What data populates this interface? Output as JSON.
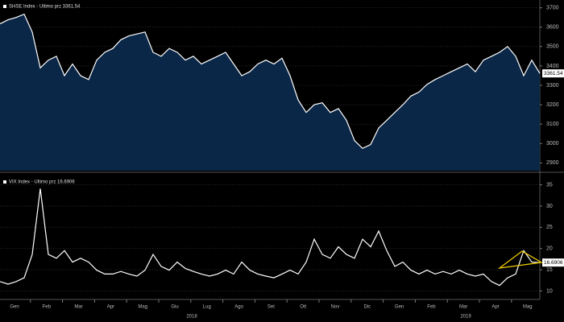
{
  "chart_data": [
    {
      "type": "area",
      "series": [
        {
          "name": "SHSE Index - Ultimo prz 3361.54",
          "color": "#ffffff",
          "fill": "#0b2747",
          "values": [
            3617,
            3638,
            3650,
            3667,
            3575,
            3390,
            3430,
            3450,
            3350,
            3410,
            3350,
            3330,
            3430,
            3470,
            3490,
            3535,
            3555,
            3565,
            3575,
            3470,
            3450,
            3490,
            3470,
            3430,
            3450,
            3410,
            3430,
            3450,
            3470,
            3410,
            3350,
            3370,
            3410,
            3430,
            3410,
            3440,
            3350,
            3225,
            3160,
            3200,
            3210,
            3160,
            3180,
            3120,
            3015,
            2975,
            2995,
            3080,
            3120,
            3160,
            3200,
            3245,
            3265,
            3305,
            3330,
            3350,
            3370,
            3390,
            3410,
            3370,
            3430,
            3450,
            3470,
            3500,
            3450,
            3350,
            3430,
            3361.54
          ]
        }
      ],
      "ylim": [
        2860,
        3740
      ],
      "yticks": [
        2900,
        3000,
        3100,
        3200,
        3300,
        3400,
        3500,
        3600,
        3700
      ],
      "grid": true
    },
    {
      "type": "line",
      "series": [
        {
          "name": "VIX Index - Ultimo prz 16.6906",
          "color": "#ffffff",
          "values": [
            12.2,
            11.6,
            12.2,
            13.1,
            18.6,
            34.1,
            18.6,
            17.7,
            19.5,
            16.8,
            17.7,
            16.8,
            14.9,
            14.0,
            14.0,
            14.6,
            14.0,
            13.5,
            14.9,
            18.6,
            15.8,
            14.9,
            16.8,
            15.3,
            14.6,
            14.0,
            13.5,
            14.0,
            14.9,
            14.0,
            16.8,
            14.9,
            14.0,
            13.5,
            13.1,
            14.0,
            14.9,
            14.0,
            16.8,
            22.2,
            18.6,
            17.7,
            20.4,
            18.6,
            17.7,
            22.2,
            20.4,
            24.1,
            19.5,
            15.8,
            16.8,
            14.9,
            14.0,
            14.9,
            14.0,
            14.6,
            14.0,
            14.9,
            14.0,
            13.5,
            14.0,
            12.2,
            11.3,
            13.1,
            14.0,
            19.5,
            16.8,
            16.6906
          ]
        }
      ],
      "ylim": [
        8,
        37.2
      ],
      "yticks": [
        10,
        15,
        20,
        25,
        30,
        35
      ],
      "grid": true,
      "xticks": [
        "Gen",
        "Feb",
        "Mar",
        "Apr",
        "Mag",
        "Giu",
        "Lug",
        "Ago",
        "Set",
        "Ott",
        "Nov",
        "Dic",
        "Gen",
        "Feb",
        "Mar",
        "Apr",
        "Mag"
      ],
      "years": [
        "2018",
        "2019"
      ]
    }
  ]
}
